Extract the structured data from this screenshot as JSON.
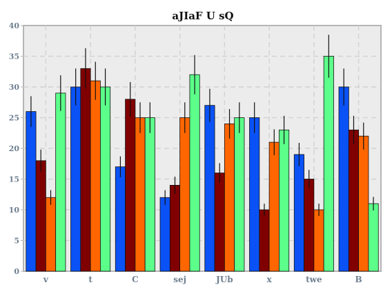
{
  "chart_data": {
    "type": "bar",
    "title": "aJIaF U sQ",
    "xlabel": "",
    "ylabel": "",
    "ylim": [
      0,
      40
    ],
    "yticks": [
      0,
      5,
      10,
      15,
      20,
      25,
      30,
      35,
      40
    ],
    "grid": true,
    "categories": [
      "v",
      "t",
      "C",
      "sej",
      "JUb",
      "x",
      "twe",
      "B"
    ],
    "series": [
      {
        "color": "#0a52f5",
        "values": [
          26,
          30,
          17,
          12,
          27,
          25,
          19,
          30
        ],
        "errors": [
          2.5,
          3.0,
          1.7,
          1.2,
          2.7,
          2.5,
          1.9,
          3.0
        ]
      },
      {
        "color": "#800000",
        "values": [
          18,
          33,
          28,
          14,
          16,
          10,
          15,
          23
        ],
        "errors": [
          1.8,
          3.3,
          2.8,
          1.4,
          1.6,
          1.0,
          1.5,
          2.3
        ]
      },
      {
        "color": "#ff6600",
        "values": [
          12,
          31,
          25,
          25,
          24,
          21,
          10,
          22
        ],
        "errors": [
          1.2,
          3.1,
          2.5,
          2.5,
          2.4,
          2.1,
          1.0,
          2.2
        ]
      },
      {
        "color": "#5cff8a",
        "values": [
          29,
          30,
          25,
          32,
          25,
          23,
          35,
          11
        ],
        "errors": [
          2.9,
          3.0,
          2.5,
          3.2,
          2.5,
          2.3,
          3.5,
          1.1
        ]
      }
    ]
  }
}
